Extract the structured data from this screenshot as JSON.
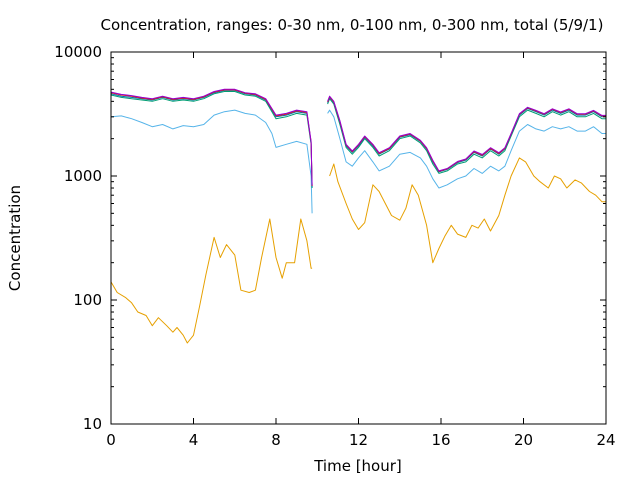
{
  "chart_data": {
    "type": "line",
    "title": "Concentration, ranges: 0-30 nm, 0-100 nm, 0-300 nm, total (5/9/1)",
    "xlabel": "Time [hour]",
    "ylabel": "Concentration",
    "xlim": [
      0,
      24
    ],
    "ylim": [
      10,
      10000
    ],
    "yscale": "log",
    "xticks": [
      "0",
      "4",
      "8",
      "12",
      "16",
      "20",
      "24"
    ],
    "yticks": [
      "10",
      "100",
      "1000",
      "10000"
    ],
    "xtick_values": [
      0,
      4,
      8,
      12,
      16,
      20,
      24
    ],
    "ytick_values": [
      10,
      100,
      1000,
      10000
    ],
    "grid": false,
    "legend": "none",
    "series": [
      {
        "color": "#e6a000",
        "x": [
          0,
          0.3,
          0.7,
          1.0,
          1.3,
          1.7,
          2.0,
          2.3,
          2.7,
          3.0,
          3.2,
          3.5,
          3.7,
          4.0,
          4.3,
          4.6,
          5.0,
          5.3,
          5.6,
          6.0,
          6.3,
          6.7,
          7.0,
          7.3,
          7.7,
          8.0,
          8.3,
          8.5,
          8.9,
          9.2,
          9.5,
          9.7,
          9.75,
          null,
          10.6,
          10.8,
          11.0,
          11.4,
          11.7,
          12.0,
          12.3,
          12.7,
          13.0,
          13.3,
          13.6,
          14.0,
          14.3,
          14.6,
          14.9,
          15.3,
          15.6,
          15.9,
          16.2,
          16.5,
          16.8,
          17.2,
          17.5,
          17.8,
          18.1,
          18.4,
          18.8,
          19.1,
          19.4,
          19.8,
          20.1,
          20.5,
          20.8,
          21.2,
          21.5,
          21.8,
          22.1,
          22.5,
          22.8,
          23.2,
          23.5,
          23.8,
          24.0
        ],
        "y": [
          140,
          115,
          105,
          95,
          80,
          75,
          62,
          72,
          62,
          55,
          60,
          52,
          45,
          52,
          90,
          160,
          320,
          220,
          280,
          230,
          120,
          115,
          120,
          220,
          450,
          220,
          150,
          200,
          200,
          450,
          300,
          180,
          180,
          null,
          1000,
          1250,
          900,
          600,
          450,
          370,
          420,
          850,
          750,
          600,
          480,
          440,
          550,
          850,
          700,
          400,
          200,
          260,
          330,
          400,
          340,
          320,
          400,
          380,
          450,
          360,
          480,
          700,
          1000,
          1400,
          1300,
          1000,
          900,
          800,
          1000,
          950,
          800,
          930,
          880,
          750,
          700,
          620,
          620
        ]
      },
      {
        "color": "#56b4e9",
        "x": [
          0,
          0.5,
          1.0,
          1.5,
          2.0,
          2.5,
          3.0,
          3.5,
          4.0,
          4.5,
          5.0,
          5.5,
          6.0,
          6.5,
          7.0,
          7.5,
          7.8,
          8.0,
          8.5,
          9.0,
          9.5,
          9.7,
          9.75,
          null,
          10.5,
          10.6,
          10.8,
          11.1,
          11.4,
          11.7,
          12.0,
          12.3,
          12.7,
          13.0,
          13.5,
          14.0,
          14.5,
          15.0,
          15.3,
          15.6,
          15.9,
          16.3,
          16.8,
          17.2,
          17.6,
          18.0,
          18.4,
          18.8,
          19.1,
          19.4,
          19.8,
          20.2,
          20.6,
          21.0,
          21.4,
          21.8,
          22.2,
          22.6,
          23.0,
          23.4,
          23.8,
          24.0
        ],
        "y": [
          3000,
          3050,
          2900,
          2700,
          2500,
          2600,
          2400,
          2550,
          2500,
          2600,
          3100,
          3300,
          3400,
          3200,
          3100,
          2700,
          2200,
          1700,
          1800,
          1900,
          1800,
          1000,
          500,
          null,
          3200,
          3400,
          3000,
          2000,
          1300,
          1200,
          1400,
          1600,
          1300,
          1100,
          1200,
          1500,
          1550,
          1400,
          1200,
          950,
          800,
          850,
          950,
          1000,
          1150,
          1050,
          1200,
          1100,
          1200,
          1600,
          2300,
          2600,
          2400,
          2300,
          2500,
          2400,
          2500,
          2300,
          2300,
          2500,
          2200,
          2200
        ]
      },
      {
        "color": "#009e73",
        "x": [
          0,
          0.5,
          1.0,
          1.5,
          2.0,
          2.5,
          3.0,
          3.5,
          4.0,
          4.5,
          5.0,
          5.5,
          6.0,
          6.5,
          7.0,
          7.5,
          7.8,
          8.0,
          8.5,
          9.0,
          9.5,
          9.7,
          9.75,
          null,
          10.5,
          10.6,
          10.8,
          11.1,
          11.4,
          11.7,
          12.0,
          12.3,
          12.7,
          13.0,
          13.5,
          14.0,
          14.5,
          15.0,
          15.3,
          15.6,
          15.9,
          16.3,
          16.8,
          17.2,
          17.6,
          18.0,
          18.4,
          18.8,
          19.1,
          19.4,
          19.8,
          20.2,
          20.6,
          21.0,
          21.4,
          21.8,
          22.2,
          22.6,
          23.0,
          23.4,
          23.8,
          24.0
        ],
        "y": [
          4500,
          4300,
          4200,
          4100,
          4000,
          4200,
          4000,
          4100,
          4000,
          4200,
          4600,
          4800,
          4800,
          4500,
          4400,
          4000,
          3300,
          2900,
          3000,
          3200,
          3100,
          1800,
          800,
          null,
          3800,
          4200,
          3800,
          2600,
          1700,
          1500,
          1700,
          2000,
          1700,
          1450,
          1600,
          2000,
          2100,
          1850,
          1600,
          1250,
          1050,
          1100,
          1250,
          1300,
          1500,
          1400,
          1600,
          1450,
          1600,
          2100,
          3000,
          3400,
          3200,
          3000,
          3300,
          3100,
          3300,
          3000,
          3000,
          3200,
          2900,
          2900
        ]
      },
      {
        "color": "#0072b2",
        "x": [
          0,
          0.5,
          1.0,
          1.5,
          2.0,
          2.5,
          3.0,
          3.5,
          4.0,
          4.5,
          5.0,
          5.5,
          6.0,
          6.5,
          7.0,
          7.5,
          7.8,
          8.0,
          8.5,
          9.0,
          9.5,
          9.7,
          9.75,
          null,
          10.5,
          10.6,
          10.8,
          11.1,
          11.4,
          11.7,
          12.0,
          12.3,
          12.7,
          13.0,
          13.5,
          14.0,
          14.5,
          15.0,
          15.3,
          15.6,
          15.9,
          16.3,
          16.8,
          17.2,
          17.6,
          18.0,
          18.4,
          18.8,
          19.1,
          19.4,
          19.8,
          20.2,
          20.6,
          21.0,
          21.4,
          21.8,
          22.2,
          22.6,
          23.0,
          23.4,
          23.8,
          24.0
        ],
        "y": [
          4600,
          4400,
          4300,
          4200,
          4100,
          4300,
          4100,
          4200,
          4100,
          4300,
          4700,
          4900,
          4900,
          4600,
          4500,
          4100,
          3400,
          3000,
          3100,
          3300,
          3200,
          1850,
          820,
          null,
          3900,
          4300,
          3900,
          2700,
          1750,
          1550,
          1750,
          2050,
          1750,
          1500,
          1650,
          2050,
          2150,
          1900,
          1650,
          1300,
          1080,
          1130,
          1280,
          1340,
          1550,
          1450,
          1650,
          1500,
          1650,
          2150,
          3100,
          3500,
          3300,
          3100,
          3400,
          3200,
          3400,
          3100,
          3100,
          3300,
          3000,
          3000
        ]
      },
      {
        "color": "#e51e10",
        "x": [
          0,
          0.5,
          1.0,
          1.5,
          2.0,
          2.5,
          3.0,
          3.5,
          4.0,
          4.5,
          5.0,
          5.5,
          6.0,
          6.5,
          7.0,
          7.5,
          7.8,
          8.0,
          8.5,
          9.0,
          9.5,
          9.7,
          9.75,
          null,
          10.5,
          10.6,
          10.8,
          11.1,
          11.4,
          11.7,
          12.0,
          12.3,
          12.7,
          13.0,
          13.5,
          14.0,
          14.5,
          15.0,
          15.3,
          15.6,
          15.9,
          16.3,
          16.8,
          17.2,
          17.6,
          18.0,
          18.4,
          18.8,
          19.1,
          19.4,
          19.8,
          20.2,
          20.6,
          21.0,
          21.4,
          21.8,
          22.2,
          22.6,
          23.0,
          23.4,
          23.8,
          24.0
        ],
        "y": [
          4700,
          4500,
          4400,
          4250,
          4150,
          4350,
          4150,
          4250,
          4150,
          4350,
          4750,
          4950,
          4950,
          4650,
          4550,
          4150,
          3450,
          3050,
          3150,
          3350,
          3250,
          1880,
          830,
          null,
          3950,
          4350,
          3950,
          2750,
          1780,
          1570,
          1780,
          2080,
          1780,
          1520,
          1670,
          2080,
          2180,
          1920,
          1670,
          1320,
          1090,
          1140,
          1300,
          1360,
          1570,
          1470,
          1670,
          1520,
          1670,
          2180,
          3150,
          3550,
          3350,
          3150,
          3450,
          3250,
          3450,
          3150,
          3150,
          3350,
          3050,
          3050
        ]
      },
      {
        "color": "#9400d3",
        "x": [
          0,
          0.5,
          1.0,
          1.5,
          2.0,
          2.5,
          3.0,
          3.5,
          4.0,
          4.5,
          5.0,
          5.5,
          6.0,
          6.5,
          7.0,
          7.5,
          7.8,
          8.0,
          8.5,
          9.0,
          9.5,
          9.7,
          9.75,
          null,
          10.5,
          10.6,
          10.8,
          11.1,
          11.4,
          11.7,
          12.0,
          12.3,
          12.7,
          13.0,
          13.5,
          14.0,
          14.5,
          15.0,
          15.3,
          15.6,
          15.9,
          16.3,
          16.8,
          17.2,
          17.6,
          18.0,
          18.4,
          18.8,
          19.1,
          19.4,
          19.8,
          20.2,
          20.6,
          21.0,
          21.4,
          21.8,
          22.2,
          22.6,
          23.0,
          23.4,
          23.8,
          24.0
        ],
        "y": [
          4750,
          4550,
          4450,
          4300,
          4200,
          4400,
          4200,
          4300,
          4200,
          4400,
          4800,
          5000,
          5000,
          4700,
          4600,
          4200,
          3500,
          3100,
          3200,
          3400,
          3300,
          1900,
          840,
          null,
          4000,
          4400,
          4000,
          2800,
          1800,
          1590,
          1800,
          2100,
          1800,
          1540,
          1690,
          2100,
          2200,
          1940,
          1690,
          1340,
          1100,
          1150,
          1310,
          1370,
          1590,
          1490,
          1690,
          1540,
          1690,
          2200,
          3180,
          3580,
          3380,
          3180,
          3480,
          3280,
          3480,
          3180,
          3180,
          3380,
          3080,
          3080
        ]
      }
    ]
  }
}
